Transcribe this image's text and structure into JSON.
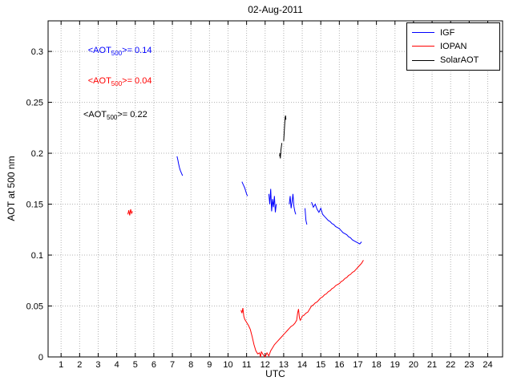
{
  "chart_data": {
    "type": "line",
    "title": "02-Aug-2011",
    "xlabel": "UTC",
    "ylabel": "AOT at 500 nm",
    "xlim": [
      0.3,
      24.8
    ],
    "ylim": [
      0,
      0.33
    ],
    "xticks": [
      1,
      2,
      3,
      4,
      5,
      6,
      7,
      8,
      9,
      10,
      11,
      12,
      13,
      14,
      15,
      16,
      17,
      18,
      19,
      20,
      21,
      22,
      23,
      24
    ],
    "yticks": [
      0,
      0.05,
      0.1,
      0.15,
      0.2,
      0.25,
      0.3
    ],
    "ytick_labels": [
      "0",
      "0.05",
      "0.1",
      "0.15",
      "0.2",
      "0.25",
      "0.3"
    ],
    "grid": "dotted",
    "legend_position": "top-right",
    "series": [
      {
        "name": "IGF",
        "color": "#0000ff",
        "segments": [
          [
            [
              7.25,
              0.197
            ],
            [
              7.3,
              0.193
            ],
            [
              7.33,
              0.19
            ],
            [
              7.38,
              0.186
            ],
            [
              7.43,
              0.183
            ],
            [
              7.5,
              0.18
            ],
            [
              7.55,
              0.178
            ]
          ],
          [
            [
              10.75,
              0.172
            ],
            [
              10.8,
              0.17
            ],
            [
              10.85,
              0.168
            ],
            [
              10.9,
              0.166
            ],
            [
              10.95,
              0.163
            ],
            [
              11.0,
              0.16
            ],
            [
              11.05,
              0.158
            ]
          ],
          [
            [
              12.2,
              0.16
            ],
            [
              12.25,
              0.15
            ],
            [
              12.3,
              0.165
            ],
            [
              12.35,
              0.143
            ],
            [
              12.4,
              0.155
            ],
            [
              12.45,
              0.147
            ],
            [
              12.5,
              0.158
            ],
            [
              12.55,
              0.142
            ],
            [
              12.6,
              0.15
            ]
          ],
          [
            [
              13.3,
              0.15
            ],
            [
              13.35,
              0.158
            ],
            [
              13.4,
              0.146
            ],
            [
              13.45,
              0.152
            ],
            [
              13.5,
              0.16
            ],
            [
              13.55,
              0.148
            ],
            [
              13.6,
              0.143
            ],
            [
              13.65,
              0.14
            ]
          ],
          [
            [
              14.15,
              0.146
            ],
            [
              14.2,
              0.134
            ],
            [
              14.25,
              0.13
            ]
          ],
          [
            [
              14.5,
              0.152
            ],
            [
              14.6,
              0.147
            ],
            [
              14.7,
              0.15
            ],
            [
              14.8,
              0.145
            ],
            [
              14.9,
              0.142
            ],
            [
              15.0,
              0.146
            ],
            [
              15.1,
              0.14
            ],
            [
              15.2,
              0.138
            ],
            [
              15.3,
              0.136
            ],
            [
              15.4,
              0.134
            ],
            [
              15.5,
              0.133
            ],
            [
              15.6,
              0.131
            ],
            [
              15.7,
              0.13
            ],
            [
              15.8,
              0.128
            ],
            [
              15.9,
              0.127
            ],
            [
              16.0,
              0.126
            ],
            [
              16.1,
              0.124
            ],
            [
              16.2,
              0.122
            ],
            [
              16.3,
              0.121
            ],
            [
              16.4,
              0.12
            ],
            [
              16.5,
              0.118
            ],
            [
              16.6,
              0.117
            ],
            [
              16.7,
              0.115
            ],
            [
              16.8,
              0.114
            ],
            [
              16.9,
              0.113
            ],
            [
              17.0,
              0.112
            ],
            [
              17.1,
              0.111
            ],
            [
              17.2,
              0.113
            ]
          ]
        ]
      },
      {
        "name": "IOPAN",
        "color": "#ff0000",
        "segments": [
          [
            [
              4.6,
              0.14
            ],
            [
              4.65,
              0.144
            ],
            [
              4.7,
              0.139
            ],
            [
              4.75,
              0.145
            ],
            [
              4.8,
              0.141
            ],
            [
              4.85,
              0.143
            ]
          ],
          [
            [
              10.7,
              0.046
            ],
            [
              10.75,
              0.043
            ],
            [
              10.8,
              0.048
            ],
            [
              10.85,
              0.04
            ],
            [
              10.9,
              0.037
            ],
            [
              11.0,
              0.034
            ],
            [
              11.1,
              0.031
            ],
            [
              11.2,
              0.027
            ],
            [
              11.3,
              0.02
            ],
            [
              11.4,
              0.012
            ],
            [
              11.5,
              0.006
            ],
            [
              11.6,
              0.003
            ],
            [
              11.7,
              0.004
            ],
            [
              11.75,
              0.0
            ],
            [
              11.8,
              0.005
            ],
            [
              11.9,
              0.002
            ],
            [
              12.0,
              0.0
            ],
            [
              12.1,
              0.004
            ],
            [
              12.2,
              0.001
            ],
            [
              12.3,
              0.006
            ],
            [
              12.4,
              0.009
            ],
            [
              12.5,
              0.012
            ],
            [
              12.6,
              0.014
            ],
            [
              12.7,
              0.016
            ],
            [
              12.8,
              0.018
            ],
            [
              12.9,
              0.02
            ],
            [
              13.0,
              0.022
            ],
            [
              13.1,
              0.024
            ],
            [
              13.2,
              0.026
            ],
            [
              13.3,
              0.028
            ],
            [
              13.4,
              0.03
            ],
            [
              13.5,
              0.031
            ],
            [
              13.6,
              0.033
            ],
            [
              13.7,
              0.036
            ],
            [
              13.75,
              0.043
            ],
            [
              13.8,
              0.047
            ],
            [
              13.85,
              0.038
            ],
            [
              13.9,
              0.036
            ],
            [
              14.0,
              0.04
            ],
            [
              14.1,
              0.041
            ],
            [
              14.2,
              0.043
            ],
            [
              14.3,
              0.044
            ],
            [
              14.4,
              0.047
            ],
            [
              14.5,
              0.05
            ],
            [
              14.6,
              0.051
            ],
            [
              14.7,
              0.053
            ],
            [
              14.8,
              0.054
            ],
            [
              14.9,
              0.056
            ],
            [
              15.0,
              0.058
            ],
            [
              15.1,
              0.059
            ],
            [
              15.2,
              0.061
            ],
            [
              15.3,
              0.062
            ],
            [
              15.4,
              0.064
            ],
            [
              15.5,
              0.065
            ],
            [
              15.6,
              0.067
            ],
            [
              15.7,
              0.068
            ],
            [
              15.8,
              0.07
            ],
            [
              15.9,
              0.071
            ],
            [
              16.0,
              0.072
            ],
            [
              16.1,
              0.074
            ],
            [
              16.2,
              0.075
            ],
            [
              16.3,
              0.077
            ],
            [
              16.4,
              0.078
            ],
            [
              16.5,
              0.08
            ],
            [
              16.6,
              0.081
            ],
            [
              16.7,
              0.083
            ],
            [
              16.8,
              0.084
            ],
            [
              16.9,
              0.086
            ],
            [
              17.0,
              0.088
            ],
            [
              17.1,
              0.09
            ],
            [
              17.2,
              0.092
            ],
            [
              17.3,
              0.095
            ]
          ]
        ]
      },
      {
        "name": "SolarAOT",
        "color": "#000000",
        "segments": [
          [
            [
              12.78,
              0.197
            ],
            [
              12.8,
              0.2
            ],
            [
              12.82,
              0.195
            ],
            [
              12.85,
              0.203
            ],
            [
              12.88,
              0.207
            ],
            [
              12.9,
              0.21
            ]
          ],
          [
            [
              13.0,
              0.212
            ],
            [
              13.02,
              0.218
            ],
            [
              13.04,
              0.224
            ],
            [
              13.06,
              0.23
            ],
            [
              13.08,
              0.235
            ],
            [
              13.1,
              0.237
            ],
            [
              13.12,
              0.233
            ]
          ]
        ]
      }
    ],
    "annotations": [
      {
        "prefix": "<AOT",
        "sub": "500",
        "suffix": ">= 0.14",
        "color": "#0000ff",
        "x": 2.45,
        "y": 0.3
      },
      {
        "prefix": "<AOT",
        "sub": "500",
        "suffix": ">= 0.04",
        "color": "#ff0000",
        "x": 2.45,
        "y": 0.27
      },
      {
        "prefix": "<AOT",
        "sub": "500",
        "suffix": ">= 0.22",
        "color": "#000000",
        "x": 2.2,
        "y": 0.237
      }
    ]
  }
}
